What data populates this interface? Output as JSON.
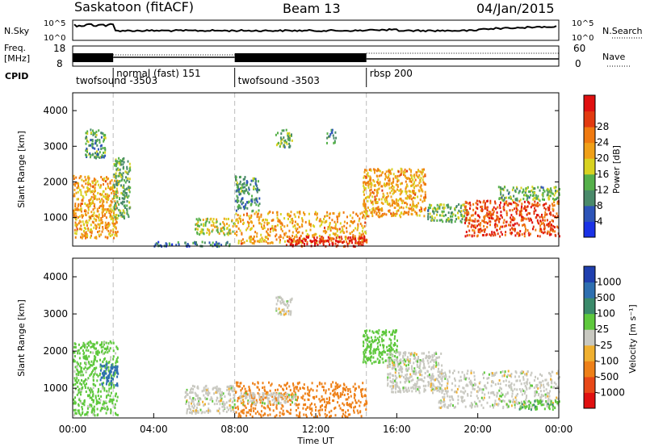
{
  "header": {
    "title": "Saskatoon (fitACF)",
    "beam": "Beam 13",
    "date": "04/Jan/2015"
  },
  "top_panel": {
    "left_label": "N.Sky",
    "left_ticks": [
      "10^5",
      "10^0"
    ],
    "right_ticks": [
      "10^5",
      "10^0"
    ],
    "right_label": "N.Search"
  },
  "freq_panel": {
    "left_label_1": "Freq.",
    "left_label_2": "[MHz]",
    "left_ticks": [
      "18",
      "8"
    ],
    "right_ticks": [
      "60",
      "0"
    ],
    "right_label": "Nave"
  },
  "cpid": {
    "label": "CPID",
    "segments": [
      {
        "text": "twofsound -3503",
        "start_h": 0,
        "end_h": 2.0,
        "row": 2
      },
      {
        "text": "normal (fast) 151",
        "start_h": 2.0,
        "end_h": 8.0,
        "row": 1
      },
      {
        "text": "twofsound -3503",
        "start_h": 8.0,
        "end_h": 14.5,
        "row": 2
      },
      {
        "text": "rbsp 200",
        "start_h": 14.5,
        "end_h": 24.0,
        "row": 1
      }
    ]
  },
  "axes": {
    "x_ticks": [
      "00:00",
      "04:00",
      "08:00",
      "12:00",
      "16:00",
      "20:00",
      "00:00"
    ],
    "x_label": "Time UT",
    "y_ticks": [
      "1000",
      "2000",
      "3000",
      "4000"
    ],
    "y_label": "Slant Range [km]"
  },
  "power_colorbar": {
    "title": "Power [dB]",
    "labels": [
      "4",
      "8",
      "12",
      "16",
      "20",
      "24",
      "28"
    ],
    "colors": [
      "#1a32e6",
      "#2d54b8",
      "#4a8a6a",
      "#55b04a",
      "#d8d220",
      "#f0a018",
      "#f07a10",
      "#e23a10",
      "#e01010"
    ]
  },
  "velocity_colorbar": {
    "title": "Velocity [m s⁻¹]",
    "labels": [
      "1000",
      "500",
      "100",
      "25",
      "-25",
      "-100",
      "-500",
      "-1000"
    ],
    "colors": [
      "#1f3fae",
      "#2e6fb0",
      "#3a8a6a",
      "#5ec83c",
      "#c8c8c0",
      "#f0b030",
      "#ee8018",
      "#e84818",
      "#e01010"
    ]
  },
  "chart_data": [
    {
      "type": "heatmap",
      "title": "Power [dB]",
      "xlabel": "Time UT",
      "ylabel": "Slant Range [km]",
      "xlim": [
        0,
        24
      ],
      "ylim": [
        200,
        4500
      ],
      "regions": [
        {
          "t0": 0.0,
          "t1": 2.2,
          "r0": 450,
          "r1": 2200,
          "level": 20
        },
        {
          "t0": 0.6,
          "t1": 1.6,
          "r0": 2700,
          "r1": 3500,
          "level": 10
        },
        {
          "t0": 2.0,
          "t1": 2.8,
          "r0": 1000,
          "r1": 2700,
          "level": 12
        },
        {
          "t0": 4.0,
          "t1": 7.8,
          "r0": 220,
          "r1": 350,
          "level": 8
        },
        {
          "t0": 6.0,
          "t1": 8.0,
          "r0": 550,
          "r1": 1000,
          "level": 16
        },
        {
          "t0": 8.0,
          "t1": 14.5,
          "r0": 300,
          "r1": 1200,
          "level": 20
        },
        {
          "t0": 8.0,
          "t1": 9.2,
          "r0": 1200,
          "r1": 2200,
          "level": 10
        },
        {
          "t0": 10.5,
          "t1": 14.5,
          "r0": 220,
          "r1": 500,
          "level": 28
        },
        {
          "t0": 10.0,
          "t1": 10.8,
          "r0": 3000,
          "r1": 3500,
          "level": 12
        },
        {
          "t0": 12.5,
          "t1": 13.0,
          "r0": 3100,
          "r1": 3500,
          "level": 10
        },
        {
          "t0": 14.3,
          "t1": 17.4,
          "r0": 1050,
          "r1": 2400,
          "level": 20
        },
        {
          "t0": 17.5,
          "t1": 19.5,
          "r0": 900,
          "r1": 1400,
          "level": 12
        },
        {
          "t0": 19.3,
          "t1": 24.0,
          "r0": 500,
          "r1": 1500,
          "level": 26
        },
        {
          "t0": 21.0,
          "t1": 24.0,
          "r0": 1500,
          "r1": 1900,
          "level": 12
        }
      ]
    },
    {
      "type": "heatmap",
      "title": "Velocity [m s⁻¹]",
      "xlabel": "Time UT",
      "ylabel": "Slant Range [km]",
      "xlim": [
        0,
        24
      ],
      "ylim": [
        200,
        4500
      ],
      "regions": [
        {
          "t0": 0.0,
          "t1": 2.2,
          "r0": 300,
          "r1": 2300,
          "level": 50
        },
        {
          "t0": 1.3,
          "t1": 2.2,
          "r0": 1100,
          "r1": 1700,
          "level": 600
        },
        {
          "t0": 5.5,
          "t1": 8.0,
          "r0": 350,
          "r1": 1100,
          "level": 0
        },
        {
          "t0": 8.0,
          "t1": 14.5,
          "r0": 250,
          "r1": 1200,
          "level": -150
        },
        {
          "t0": 8.2,
          "t1": 11.0,
          "r0": 600,
          "r1": 900,
          "level": 0
        },
        {
          "t0": 10.0,
          "t1": 10.8,
          "r0": 3000,
          "r1": 3500,
          "level": 0
        },
        {
          "t0": 14.3,
          "t1": 16.0,
          "r0": 1700,
          "r1": 2600,
          "level": 60
        },
        {
          "t0": 15.5,
          "t1": 18.2,
          "r0": 900,
          "r1": 2000,
          "level": 0
        },
        {
          "t0": 18.0,
          "t1": 24.0,
          "r0": 500,
          "r1": 1500,
          "level": 0
        },
        {
          "t0": 22.0,
          "t1": 24.0,
          "r0": 450,
          "r1": 700,
          "level": 80
        }
      ]
    }
  ]
}
